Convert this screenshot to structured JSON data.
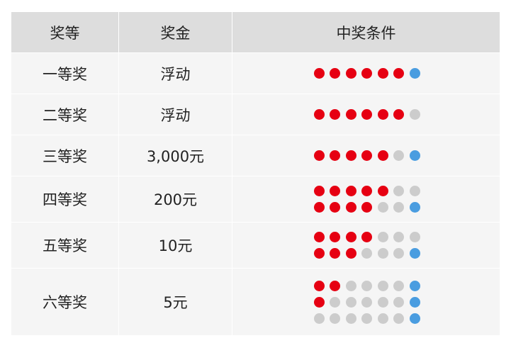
{
  "colors": {
    "red": "#e60012",
    "blue": "#4a9de0",
    "gray": "#cccccc"
  },
  "header": {
    "level": "奖等",
    "prize": "奖金",
    "condition": "中奖条件"
  },
  "rows": [
    {
      "level": "一等奖",
      "prize": "浮动",
      "conditions": [
        {
          "red": 6,
          "blue": true
        }
      ]
    },
    {
      "level": "二等奖",
      "prize": "浮动",
      "conditions": [
        {
          "red": 6,
          "blue": false
        }
      ]
    },
    {
      "level": "三等奖",
      "prize": "3,000元",
      "conditions": [
        {
          "red": 5,
          "blue": true
        }
      ]
    },
    {
      "level": "四等奖",
      "prize": "200元",
      "conditions": [
        {
          "red": 5,
          "blue": false
        },
        {
          "red": 4,
          "blue": true
        }
      ]
    },
    {
      "level": "五等奖",
      "prize": "10元",
      "conditions": [
        {
          "red": 4,
          "blue": false
        },
        {
          "red": 3,
          "blue": true
        }
      ]
    },
    {
      "level": "六等奖",
      "prize": "5元",
      "conditions": [
        {
          "red": 2,
          "blue": true
        },
        {
          "red": 1,
          "blue": true
        },
        {
          "red": 0,
          "blue": true
        }
      ]
    }
  ]
}
